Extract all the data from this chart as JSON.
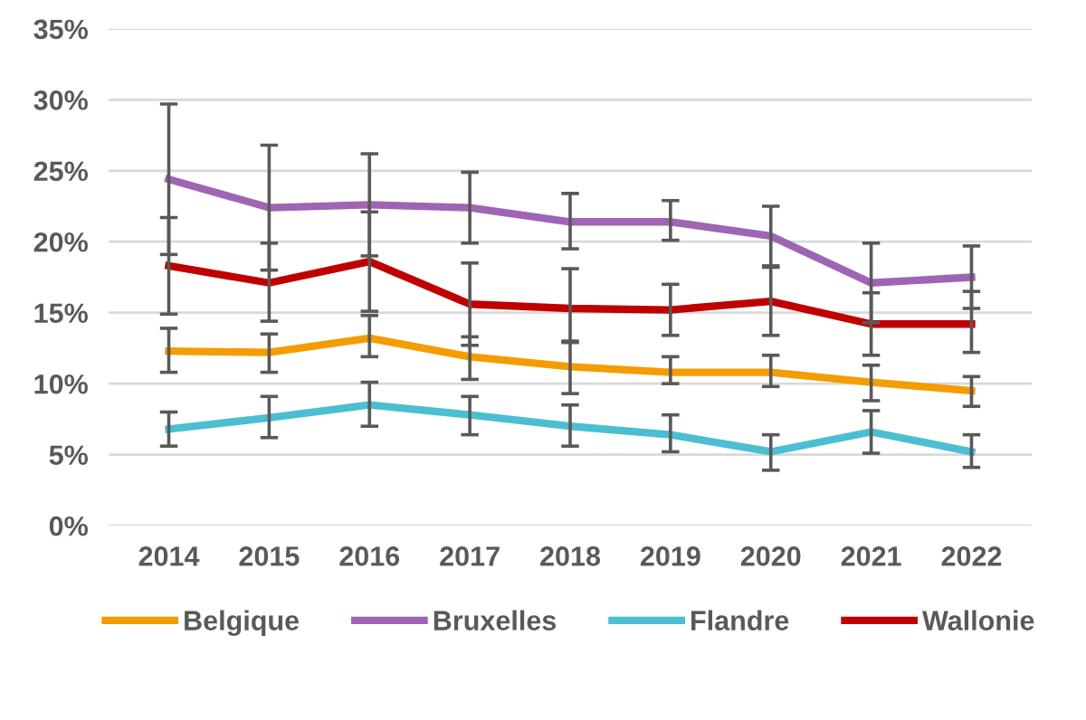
{
  "chart_data": {
    "type": "line",
    "categories": [
      "2014",
      "2015",
      "2016",
      "2017",
      "2018",
      "2019",
      "2020",
      "2021",
      "2022"
    ],
    "series": [
      {
        "name": "Belgique",
        "color": "#f59c00",
        "values": [
          12.3,
          12.2,
          13.2,
          11.9,
          11.2,
          10.8,
          10.8,
          10.1,
          9.5
        ],
        "errors": [
          [
            10.8,
            13.9
          ],
          [
            10.8,
            13.5
          ],
          [
            11.9,
            14.8
          ],
          [
            10.3,
            13.3
          ],
          [
            9.3,
            12.9
          ],
          [
            10.0,
            11.9
          ],
          [
            9.8,
            12.0
          ],
          [
            8.8,
            11.3
          ],
          [
            8.4,
            10.5
          ]
        ]
      },
      {
        "name": "Bruxelles",
        "color": "#a064b4",
        "values": [
          24.4,
          22.4,
          22.6,
          22.4,
          21.4,
          21.4,
          20.4,
          17.1,
          17.5
        ],
        "errors": [
          [
            19.1,
            29.7
          ],
          [
            18.0,
            26.8
          ],
          [
            19.0,
            26.2
          ],
          [
            19.9,
            24.9
          ],
          [
            19.5,
            23.4
          ],
          [
            20.1,
            22.9
          ],
          [
            18.3,
            22.5
          ],
          [
            14.3,
            19.9
          ],
          [
            15.3,
            19.7
          ]
        ]
      },
      {
        "name": "Flandre",
        "color": "#4bbed2",
        "values": [
          6.8,
          7.6,
          8.5,
          7.8,
          7.0,
          6.4,
          5.2,
          6.6,
          5.2
        ],
        "errors": [
          [
            5.6,
            8.0
          ],
          [
            6.2,
            9.1
          ],
          [
            7.0,
            10.1
          ],
          [
            6.4,
            9.1
          ],
          [
            5.6,
            8.5
          ],
          [
            5.2,
            7.8
          ],
          [
            3.9,
            6.4
          ],
          [
            5.1,
            8.1
          ],
          [
            4.1,
            6.4
          ]
        ]
      },
      {
        "name": "Wallonie",
        "color": "#c00000",
        "values": [
          18.3,
          17.1,
          18.6,
          15.6,
          15.3,
          15.2,
          15.8,
          14.2,
          14.2
        ],
        "errors": [
          [
            14.9,
            21.7
          ],
          [
            14.4,
            19.9
          ],
          [
            15.1,
            22.1
          ],
          [
            12.7,
            18.5
          ],
          [
            13.0,
            18.1
          ],
          [
            13.4,
            17.0
          ],
          [
            13.4,
            18.2
          ],
          [
            12.0,
            16.4
          ],
          [
            12.2,
            16.5
          ]
        ]
      }
    ],
    "ylim": [
      0,
      35
    ],
    "yticks": [
      {
        "value": 0,
        "label": "0%"
      },
      {
        "value": 5,
        "label": "5%"
      },
      {
        "value": 10,
        "label": "10%"
      },
      {
        "value": 15,
        "label": "15%"
      },
      {
        "value": 20,
        "label": "20%"
      },
      {
        "value": 25,
        "label": "25%"
      },
      {
        "value": 30,
        "label": "30%"
      },
      {
        "value": 35,
        "label": "35%"
      }
    ],
    "grid": "y",
    "legend": "bottom",
    "line_style": "solid",
    "marker": "none"
  }
}
